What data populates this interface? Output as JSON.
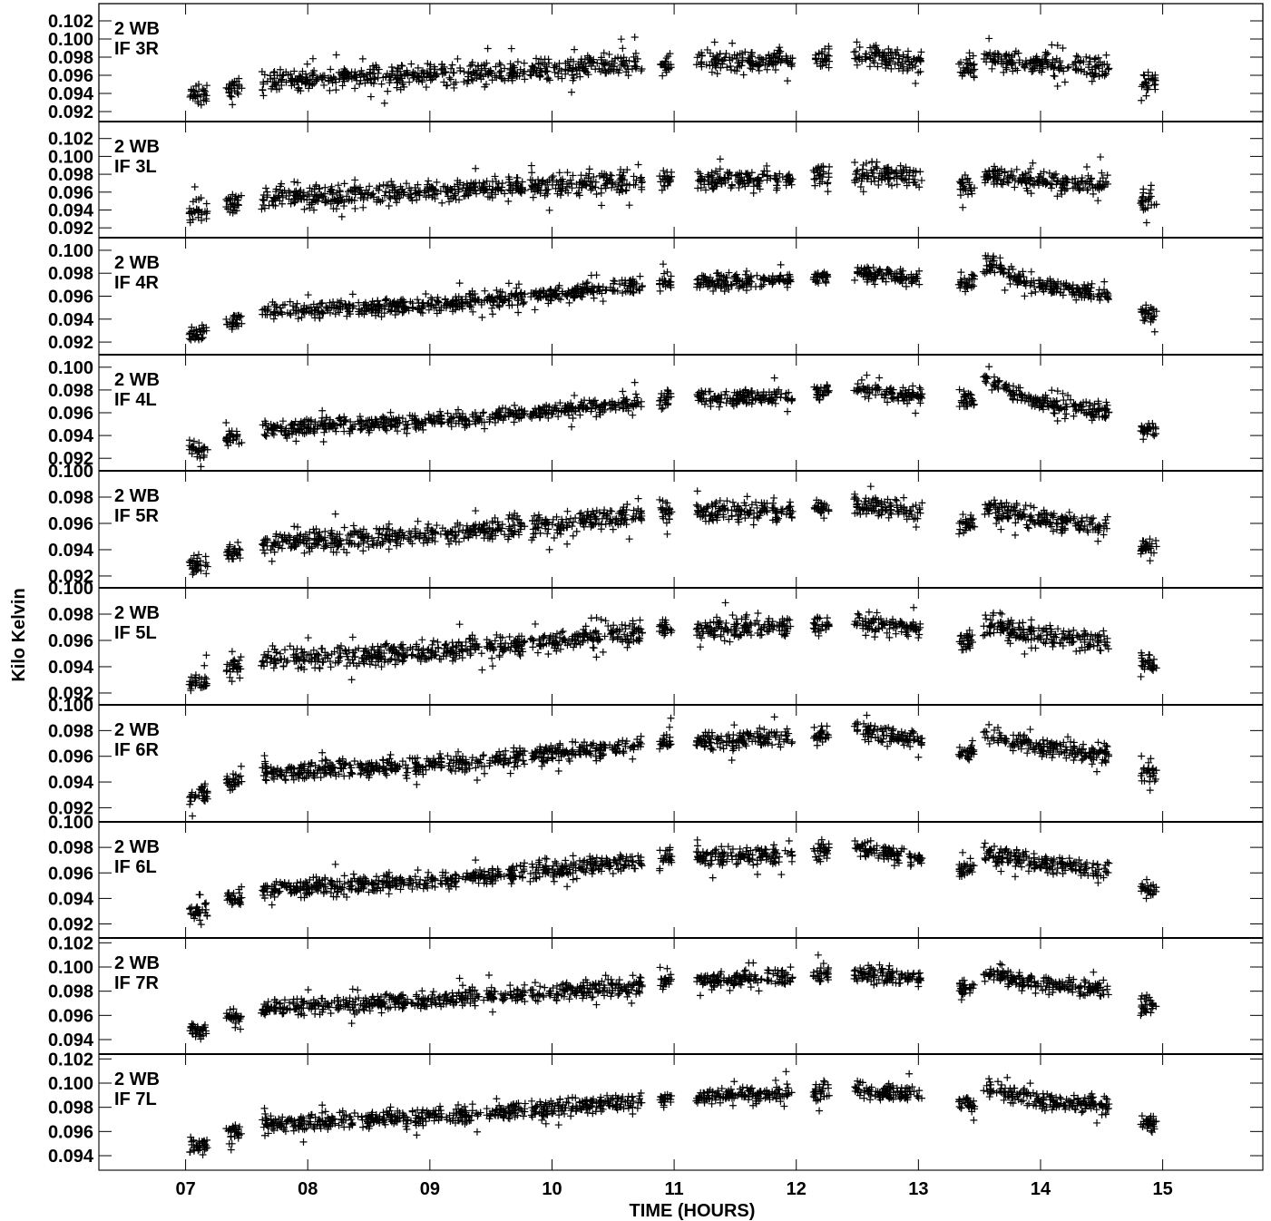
{
  "chart_data": {
    "type": "scatter",
    "marker": "plus",
    "xlabel": "TIME (HOURS)",
    "ylabel": "Kilo Kelvin",
    "xlim": [
      6.29,
      15.82
    ],
    "x_ticks": [
      7,
      8,
      9,
      10,
      11,
      12,
      13,
      14,
      15
    ],
    "x_tick_labels": [
      "07",
      "08",
      "09",
      "10",
      "11",
      "12",
      "13",
      "14",
      "15"
    ],
    "scan_blocks": [
      {
        "start": 7.03,
        "end": 7.18,
        "offset": -0.0014
      },
      {
        "start": 7.33,
        "end": 7.46,
        "offset": -0.0005
      },
      {
        "start": 7.62,
        "end": 9.62,
        "offset": 0.0
      },
      {
        "start": 9.64,
        "end": 9.78,
        "offset": 0.0
      },
      {
        "start": 9.82,
        "end": 10.74,
        "offset": 0.0
      },
      {
        "start": 10.88,
        "end": 10.98,
        "offset": 0.0
      },
      {
        "start": 11.18,
        "end": 11.97,
        "offset": 0.0
      },
      {
        "start": 12.14,
        "end": 12.27,
        "offset": 0.0
      },
      {
        "start": 12.47,
        "end": 13.03,
        "offset": 0.0
      },
      {
        "start": 13.33,
        "end": 13.46,
        "offset": -0.0012
      },
      {
        "start": 13.53,
        "end": 14.56,
        "offset": 0.0
      },
      {
        "start": 14.82,
        "end": 14.95,
        "offset": -0.0013
      }
    ],
    "panels": [
      {
        "label_line1": "2 WB",
        "label_line2": "IF 3R",
        "ylim": [
          0.0909,
          0.1039
        ],
        "y_ticks": [
          0.092,
          0.094,
          0.096,
          0.098,
          0.1,
          0.102
        ],
        "y_tick_labels": [
          "0.092",
          "0.094",
          "0.096",
          "0.098",
          "0.100",
          "0.102"
        ],
        "trend": [
          [
            7.1,
            0.0951
          ],
          [
            8.0,
            0.0955
          ],
          [
            9.0,
            0.096
          ],
          [
            10.0,
            0.0968
          ],
          [
            11.0,
            0.0973
          ],
          [
            12.0,
            0.0976
          ],
          [
            12.6,
            0.0982
          ],
          [
            13.0,
            0.0976
          ],
          [
            13.5,
            0.098
          ],
          [
            14.0,
            0.0972
          ],
          [
            14.9,
            0.0966
          ]
        ],
        "scatter": 0.0012
      },
      {
        "label_line1": "2 WB",
        "label_line2": "IF 3L",
        "ylim": [
          0.0909,
          0.1039
        ],
        "y_ticks": [
          0.092,
          0.094,
          0.096,
          0.098,
          0.1,
          0.102
        ],
        "y_tick_labels": [
          "0.092",
          "0.094",
          "0.096",
          "0.098",
          "0.100",
          "0.102"
        ],
        "trend": [
          [
            7.1,
            0.0951
          ],
          [
            8.0,
            0.0955
          ],
          [
            9.0,
            0.096
          ],
          [
            10.0,
            0.0968
          ],
          [
            11.0,
            0.0973
          ],
          [
            12.0,
            0.0976
          ],
          [
            12.6,
            0.0982
          ],
          [
            13.0,
            0.0976
          ],
          [
            13.5,
            0.098
          ],
          [
            14.0,
            0.0972
          ],
          [
            14.9,
            0.0966
          ]
        ],
        "scatter": 0.0012
      },
      {
        "label_line1": "2 WB",
        "label_line2": "IF 4R",
        "ylim": [
          0.0909,
          0.1011
        ],
        "y_ticks": [
          0.092,
          0.094,
          0.096,
          0.098,
          0.1
        ],
        "y_tick_labels": [
          "0.092",
          "0.094",
          "0.096",
          "0.098",
          "0.100"
        ],
        "trend": [
          [
            7.1,
            0.0941
          ],
          [
            8.0,
            0.0948
          ],
          [
            9.0,
            0.0952
          ],
          [
            10.0,
            0.0962
          ],
          [
            11.0,
            0.0972
          ],
          [
            12.0,
            0.0974
          ],
          [
            12.5,
            0.0981
          ],
          [
            13.0,
            0.0974
          ],
          [
            13.55,
            0.0989
          ],
          [
            14.0,
            0.0968
          ],
          [
            14.55,
            0.0961
          ],
          [
            14.9,
            0.0957
          ]
        ],
        "scatter": 0.0007
      },
      {
        "label_line1": "2 WB",
        "label_line2": "IF 4L",
        "ylim": [
          0.0909,
          0.1011
        ],
        "y_ticks": [
          0.092,
          0.094,
          0.096,
          0.098,
          0.1
        ],
        "y_tick_labels": [
          "0.092",
          "0.094",
          "0.096",
          "0.098",
          "0.100"
        ],
        "trend": [
          [
            7.1,
            0.0941
          ],
          [
            8.0,
            0.0948
          ],
          [
            9.0,
            0.0952
          ],
          [
            10.0,
            0.0962
          ],
          [
            11.0,
            0.0972
          ],
          [
            12.0,
            0.0974
          ],
          [
            12.5,
            0.0981
          ],
          [
            13.0,
            0.0974
          ],
          [
            13.55,
            0.0989
          ],
          [
            14.0,
            0.0968
          ],
          [
            14.55,
            0.0961
          ],
          [
            14.9,
            0.0957
          ]
        ],
        "scatter": 0.0007
      },
      {
        "label_line1": "2 WB",
        "label_line2": "IF 5R",
        "ylim": [
          0.0911,
          0.1
        ],
        "y_ticks": [
          0.092,
          0.094,
          0.096,
          0.098,
          0.1
        ],
        "y_tick_labels": [
          "0.092",
          "0.094",
          "0.096",
          "0.098",
          "0.100"
        ],
        "trend": [
          [
            7.1,
            0.0942
          ],
          [
            8.0,
            0.0947
          ],
          [
            9.0,
            0.0951
          ],
          [
            10.0,
            0.0959
          ],
          [
            11.0,
            0.0969
          ],
          [
            12.0,
            0.097
          ],
          [
            12.5,
            0.0974
          ],
          [
            13.0,
            0.0969
          ],
          [
            13.55,
            0.0972
          ],
          [
            14.0,
            0.0963
          ],
          [
            14.55,
            0.0958
          ],
          [
            14.9,
            0.0955
          ]
        ],
        "scatter": 0.0008
      },
      {
        "label_line1": "2 WB",
        "label_line2": "IF 5L",
        "ylim": [
          0.0911,
          0.1
        ],
        "y_ticks": [
          0.092,
          0.094,
          0.096,
          0.098,
          0.1
        ],
        "y_tick_labels": [
          "0.092",
          "0.094",
          "0.096",
          "0.098",
          "0.100"
        ],
        "trend": [
          [
            7.1,
            0.0942
          ],
          [
            8.0,
            0.0947
          ],
          [
            9.0,
            0.0951
          ],
          [
            10.0,
            0.0959
          ],
          [
            11.0,
            0.0969
          ],
          [
            12.0,
            0.097
          ],
          [
            12.5,
            0.0974
          ],
          [
            13.0,
            0.0969
          ],
          [
            13.55,
            0.0972
          ],
          [
            14.0,
            0.0963
          ],
          [
            14.55,
            0.0958
          ],
          [
            14.9,
            0.0955
          ]
        ],
        "scatter": 0.0008
      },
      {
        "label_line1": "2 WB",
        "label_line2": "IF 6R",
        "ylim": [
          0.0909,
          0.1
        ],
        "y_ticks": [
          0.092,
          0.094,
          0.096,
          0.098,
          0.1
        ],
        "y_tick_labels": [
          "0.092",
          "0.094",
          "0.096",
          "0.098",
          "0.100"
        ],
        "trend": [
          [
            7.1,
            0.0944
          ],
          [
            8.0,
            0.0949
          ],
          [
            9.0,
            0.0953
          ],
          [
            10.0,
            0.0962
          ],
          [
            11.0,
            0.0972
          ],
          [
            12.0,
            0.0974
          ],
          [
            12.5,
            0.098
          ],
          [
            13.0,
            0.0972
          ],
          [
            13.55,
            0.0976
          ],
          [
            14.0,
            0.0967
          ],
          [
            14.55,
            0.0962
          ],
          [
            14.9,
            0.096
          ]
        ],
        "scatter": 0.0007
      },
      {
        "label_line1": "2 WB",
        "label_line2": "IF 6L",
        "ylim": [
          0.0909,
          0.1
        ],
        "y_ticks": [
          0.092,
          0.094,
          0.096,
          0.098,
          0.1
        ],
        "y_tick_labels": [
          "0.092",
          "0.094",
          "0.096",
          "0.098",
          "0.100"
        ],
        "trend": [
          [
            7.1,
            0.0944
          ],
          [
            8.0,
            0.0949
          ],
          [
            9.0,
            0.0953
          ],
          [
            10.0,
            0.0962
          ],
          [
            11.0,
            0.0972
          ],
          [
            12.0,
            0.0974
          ],
          [
            12.5,
            0.098
          ],
          [
            13.0,
            0.0972
          ],
          [
            13.55,
            0.0976
          ],
          [
            14.0,
            0.0967
          ],
          [
            14.55,
            0.0962
          ],
          [
            14.9,
            0.096
          ]
        ],
        "scatter": 0.0007
      },
      {
        "label_line1": "2 WB",
        "label_line2": "IF 7R",
        "ylim": [
          0.0928,
          0.1024
        ],
        "y_ticks": [
          0.094,
          0.096,
          0.098,
          0.1,
          0.102
        ],
        "y_tick_labels": [
          "0.094",
          "0.096",
          "0.098",
          "0.100",
          "0.102"
        ],
        "trend": [
          [
            7.1,
            0.0962
          ],
          [
            8.0,
            0.0968
          ],
          [
            9.0,
            0.0972
          ],
          [
            10.0,
            0.0979
          ],
          [
            11.0,
            0.0988
          ],
          [
            12.0,
            0.0992
          ],
          [
            12.5,
            0.0995
          ],
          [
            13.0,
            0.099
          ],
          [
            13.55,
            0.0995
          ],
          [
            14.0,
            0.0986
          ],
          [
            14.55,
            0.0981
          ],
          [
            14.9,
            0.098
          ]
        ],
        "scatter": 0.0007
      },
      {
        "label_line1": "2 WB",
        "label_line2": "IF 7L",
        "ylim": [
          0.0928,
          0.1024
        ],
        "y_ticks": [
          0.094,
          0.096,
          0.098,
          0.1,
          0.102
        ],
        "y_tick_labels": [
          "0.094",
          "0.096",
          "0.098",
          "0.100",
          "0.102"
        ],
        "trend": [
          [
            7.1,
            0.0962
          ],
          [
            8.0,
            0.0968
          ],
          [
            9.0,
            0.0972
          ],
          [
            10.0,
            0.0979
          ],
          [
            11.0,
            0.0988
          ],
          [
            12.0,
            0.0992
          ],
          [
            12.5,
            0.0995
          ],
          [
            13.0,
            0.099
          ],
          [
            13.55,
            0.0995
          ],
          [
            14.0,
            0.0986
          ],
          [
            14.55,
            0.0981
          ],
          [
            14.9,
            0.098
          ]
        ],
        "scatter": 0.0007
      }
    ]
  }
}
